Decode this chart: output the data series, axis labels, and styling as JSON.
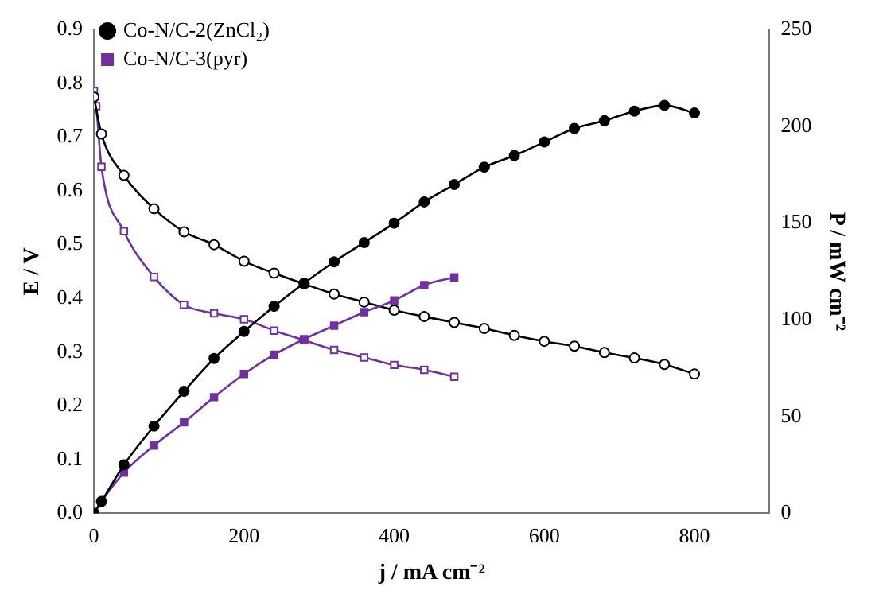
{
  "chart_data": {
    "type": "line",
    "xlabel": "j / mA cm⁻²",
    "ylabel": "E / V",
    "y2label": "P / mW cm⁻²",
    "xlim": [
      0,
      900
    ],
    "xticks": [
      0,
      200,
      400,
      600,
      800
    ],
    "ylim": [
      0,
      0.9
    ],
    "yticks": [
      {
        "value": 0,
        "label": "0.0"
      },
      0.1,
      0.2,
      0.3,
      0.4,
      0.5,
      0.6,
      0.7,
      0.8,
      0.9
    ],
    "y2lim": [
      0,
      250
    ],
    "y2ticks": [
      0,
      50,
      100,
      150,
      200,
      250
    ],
    "grid": false,
    "legend": "top left",
    "series": [
      {
        "name": "Co-N/C-2(ZnCl₂)",
        "color": "#000000",
        "marker": "circle",
        "axis": "y2",
        "x": [
          0,
          10,
          40,
          80,
          120,
          160,
          200,
          240,
          280,
          320,
          360,
          400,
          440,
          480,
          520,
          560,
          600,
          640,
          680,
          720,
          760,
          800
        ],
        "values": [
          0,
          6,
          25,
          45,
          63,
          80,
          94,
          107,
          119,
          130,
          140,
          150,
          161,
          170,
          179,
          185,
          192,
          199,
          203,
          208,
          211,
          207
        ]
      },
      {
        "name": "Co-N/C-3(pyr)",
        "color": "#7030a0",
        "marker": "square",
        "axis": "y2",
        "x": [
          0,
          10,
          40,
          80,
          120,
          160,
          200,
          240,
          280,
          320,
          360,
          400,
          440,
          480
        ],
        "values": [
          0,
          6,
          21,
          35,
          47,
          60,
          72,
          82,
          90,
          97,
          104,
          110,
          118,
          122
        ]
      },
      {
        "color": "#000000",
        "marker": "circle",
        "axis": "y",
        "x": [
          0,
          10,
          40,
          80,
          120,
          160,
          200,
          240,
          280,
          320,
          360,
          400,
          440,
          480,
          520,
          560,
          600,
          640,
          680,
          720,
          760,
          800
        ],
        "values": [
          0.775,
          0.706,
          0.629,
          0.567,
          0.524,
          0.5,
          0.469,
          0.447,
          0.427,
          0.408,
          0.393,
          0.378,
          0.366,
          0.355,
          0.344,
          0.331,
          0.32,
          0.311,
          0.299,
          0.289,
          0.277,
          0.259
        ]
      },
      {
        "color": "#7030a0",
        "marker": "square",
        "axis": "y",
        "x": [
          0,
          3,
          10,
          40,
          80,
          120,
          160,
          200,
          240,
          280,
          320,
          360,
          400,
          440,
          480
        ],
        "values": [
          0.786,
          0.758,
          0.645,
          0.525,
          0.44,
          0.388,
          0.372,
          0.361,
          0.34,
          0.322,
          0.304,
          0.29,
          0.276,
          0.267,
          0.254
        ]
      }
    ]
  }
}
